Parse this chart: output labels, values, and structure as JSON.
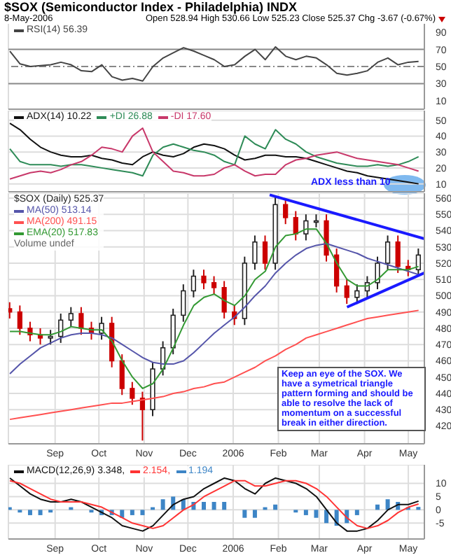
{
  "chart_data": [
    {
      "type": "line",
      "title": "$SOX (Semiconductor Index - Philadelphia) INDX",
      "subtitle": "8-May-2006",
      "annotations": [
        "Open 528.94 High 530.66 Low 525.23 Close 525.37 Chg -3.67 (-0.67%)"
      ],
      "x": [
        "2005-08-01",
        "2005-08-08",
        "2005-08-15",
        "2005-08-22",
        "2005-08-29",
        "2005-09-05",
        "2005-09-12",
        "2005-09-19",
        "2005-09-26",
        "2005-10-03",
        "2005-10-10",
        "2005-10-17",
        "2005-10-24",
        "2005-10-31",
        "2005-11-07",
        "2005-11-14",
        "2005-11-21",
        "2005-11-28",
        "2005-12-05",
        "2005-12-12",
        "2005-12-19",
        "2005-12-26",
        "2006-01-02",
        "2006-01-09",
        "2006-01-16",
        "2006-01-23",
        "2006-01-30",
        "2006-02-06",
        "2006-02-13",
        "2006-02-20",
        "2006-02-27",
        "2006-03-06",
        "2006-03-13",
        "2006-03-20",
        "2006-03-27",
        "2006-04-03",
        "2006-04-10",
        "2006-04-17",
        "2006-04-24",
        "2006-05-01",
        "2006-05-08"
      ],
      "series": [
        {
          "name": "RSI(14) 56.39",
          "color": "#444444",
          "values": [
            68,
            53,
            50,
            51,
            52,
            55,
            52,
            45,
            44,
            52,
            38,
            34,
            36,
            33,
            50,
            60,
            66,
            72,
            68,
            63,
            58,
            50,
            52,
            62,
            70,
            58,
            73,
            62,
            58,
            62,
            60,
            52,
            42,
            40,
            42,
            45,
            55,
            60,
            52,
            55,
            56
          ]
        }
      ],
      "xlim": [
        "2005-07-31",
        "2006-05-12"
      ],
      "xticks": [
        {
          "value": "2005-09-01",
          "label": null
        },
        {
          "value": "2005-10-01",
          "label": null
        },
        {
          "value": "2005-11-01",
          "label": null
        },
        {
          "value": "2005-12-01",
          "label": null
        },
        {
          "value": "2006-01-01",
          "label": null
        },
        {
          "value": "2006-02-01",
          "label": null
        },
        {
          "value": "2006-03-01",
          "label": null
        },
        {
          "value": "2006-04-01",
          "label": null
        },
        {
          "value": "2006-05-01",
          "label": null
        }
      ],
      "ylim": [
        0,
        100
      ],
      "yticks": [
        10,
        30,
        50,
        70,
        90
      ],
      "tick_labels": "y",
      "grid": "x",
      "legend": "top left",
      "ref_lines": [
        {
          "axis": "y",
          "value": 70,
          "color": "#888888"
        },
        {
          "axis": "y",
          "value": 30,
          "color": "#888888"
        },
        {
          "axis": "y",
          "value": 50,
          "color": "#888888",
          "line_style": "dashed"
        }
      ]
    },
    {
      "type": "line",
      "annotations": [
        "ADX less than 10"
      ],
      "x": [
        "2005-08-01",
        "2005-08-08",
        "2005-08-15",
        "2005-08-22",
        "2005-08-29",
        "2005-09-05",
        "2005-09-12",
        "2005-09-19",
        "2005-09-26",
        "2005-10-03",
        "2005-10-10",
        "2005-10-17",
        "2005-10-24",
        "2005-10-31",
        "2005-11-07",
        "2005-11-14",
        "2005-11-21",
        "2005-11-28",
        "2005-12-05",
        "2005-12-12",
        "2005-12-19",
        "2005-12-26",
        "2006-01-02",
        "2006-01-09",
        "2006-01-16",
        "2006-01-23",
        "2006-01-30",
        "2006-02-06",
        "2006-02-13",
        "2006-02-20",
        "2006-02-27",
        "2006-03-06",
        "2006-03-13",
        "2006-03-20",
        "2006-03-27",
        "2006-04-03",
        "2006-04-10",
        "2006-04-17",
        "2006-04-24",
        "2006-05-01",
        "2006-05-08"
      ],
      "series": [
        {
          "name": "ADX(14) 10.22",
          "color": "#111111",
          "values": [
            48,
            44,
            38,
            33,
            30,
            28,
            27,
            27,
            28,
            26,
            25,
            23,
            22,
            27,
            30,
            28,
            27,
            29,
            33,
            35,
            34,
            32,
            28,
            25,
            26,
            28,
            28,
            27,
            27,
            26,
            24,
            22,
            20,
            18,
            17,
            15,
            14,
            13,
            12,
            11,
            10
          ]
        },
        {
          "name": "+DI 26.88",
          "color": "#2e8b57",
          "values": [
            32,
            24,
            22,
            22,
            22,
            21,
            22,
            22,
            21,
            20,
            19,
            18,
            17,
            15,
            28,
            33,
            35,
            33,
            31,
            30,
            28,
            24,
            22,
            40,
            35,
            32,
            44,
            38,
            35,
            30,
            27,
            25,
            23,
            22,
            21,
            21,
            22,
            21,
            22,
            24,
            27
          ]
        },
        {
          "name": "-DI 17.60",
          "color": "#c8386a",
          "values": [
            13,
            15,
            17,
            18,
            17,
            19,
            22,
            24,
            28,
            33,
            32,
            30,
            40,
            45,
            30,
            24,
            18,
            17,
            15,
            15,
            16,
            20,
            22,
            18,
            15,
            16,
            16,
            22,
            25,
            26,
            28,
            29,
            30,
            28,
            26,
            25,
            24,
            23,
            22,
            20,
            18
          ]
        }
      ],
      "xlim": [
        "2005-07-31",
        "2006-05-12"
      ],
      "xticks": [
        {
          "value": "2005-09-01",
          "label": null
        },
        {
          "value": "2005-10-01",
          "label": null
        },
        {
          "value": "2005-11-01",
          "label": null
        },
        {
          "value": "2005-12-01",
          "label": null
        },
        {
          "value": "2006-01-01",
          "label": null
        },
        {
          "value": "2006-02-01",
          "label": null
        },
        {
          "value": "2006-03-01",
          "label": null
        },
        {
          "value": "2006-04-01",
          "label": null
        },
        {
          "value": "2006-05-01",
          "label": null
        }
      ],
      "ylim": [
        5,
        56
      ],
      "yticks": [
        10,
        20,
        30,
        40,
        50
      ],
      "tick_labels": "y",
      "grid": true,
      "legend": "top left"
    },
    {
      "type": "candlestick",
      "legend_title": "$SOX (Daily) 525.37",
      "annotations": [
        "Volume undef",
        "Keep an eye of the SOX.  We have a symetrical triangle pattern forming and should be able to resolve the lack of momentum on a successful break in either direction."
      ],
      "x": [
        "2005-08-01",
        "2005-08-08",
        "2005-08-15",
        "2005-08-22",
        "2005-08-29",
        "2005-09-05",
        "2005-09-12",
        "2005-09-19",
        "2005-09-26",
        "2005-10-03",
        "2005-10-10",
        "2005-10-17",
        "2005-10-24",
        "2005-10-31",
        "2005-11-07",
        "2005-11-14",
        "2005-11-21",
        "2005-11-28",
        "2005-12-05",
        "2005-12-12",
        "2005-12-19",
        "2005-12-26",
        "2006-01-02",
        "2006-01-09",
        "2006-01-16",
        "2006-01-23",
        "2006-01-30",
        "2006-02-06",
        "2006-02-13",
        "2006-02-20",
        "2006-02-27",
        "2006-03-06",
        "2006-03-13",
        "2006-03-20",
        "2006-03-27",
        "2006-04-03",
        "2006-04-10",
        "2006-04-17",
        "2006-04-24",
        "2006-05-01",
        "2006-05-08"
      ],
      "ohlc": [
        [
          492,
          496,
          486,
          490
        ],
        [
          490,
          494,
          476,
          480
        ],
        [
          480,
          484,
          472,
          476
        ],
        [
          476,
          480,
          470,
          474
        ],
        [
          474,
          479,
          470,
          475
        ],
        [
          475,
          489,
          471,
          485
        ],
        [
          485,
          493,
          481,
          489
        ],
        [
          489,
          493,
          476,
          480
        ],
        [
          480,
          484,
          473,
          477
        ],
        [
          477,
          487,
          473,
          483
        ],
        [
          483,
          487,
          456,
          460
        ],
        [
          460,
          464,
          439,
          443
        ],
        [
          443,
          447,
          433,
          437
        ],
        [
          437,
          441,
          411,
          430
        ],
        [
          430,
          459,
          426,
          455
        ],
        [
          455,
          472,
          451,
          468
        ],
        [
          468,
          492,
          464,
          488
        ],
        [
          488,
          507,
          484,
          503
        ],
        [
          503,
          516,
          499,
          512
        ],
        [
          512,
          516,
          504,
          508
        ],
        [
          508,
          512,
          501,
          505
        ],
        [
          505,
          509,
          486,
          490
        ],
        [
          490,
          494,
          482,
          486
        ],
        [
          486,
          524,
          482,
          520
        ],
        [
          520,
          537,
          516,
          533
        ],
        [
          533,
          537,
          516,
          520
        ],
        [
          520,
          561,
          516,
          556
        ],
        [
          556,
          560,
          544,
          548
        ],
        [
          548,
          552,
          534,
          538
        ],
        [
          538,
          550,
          534,
          546
        ],
        [
          546,
          550,
          542,
          546
        ],
        [
          546,
          550,
          521,
          525
        ],
        [
          525,
          529,
          502,
          506
        ],
        [
          506,
          510,
          495,
          499
        ],
        [
          499,
          507,
          495,
          503
        ],
        [
          503,
          512,
          499,
          508
        ],
        [
          508,
          524,
          504,
          520
        ],
        [
          520,
          537,
          516,
          533
        ],
        [
          533,
          537,
          514,
          518
        ],
        [
          518,
          522,
          512,
          516
        ],
        [
          516,
          529,
          512,
          525
        ]
      ],
      "colors": [
        "#cc0000",
        "#cc0000",
        "#cc0000",
        "#cc0000",
        "#222222",
        "#222222",
        "#222222",
        "#cc0000",
        "#cc0000",
        "#222222",
        "#cc0000",
        "#cc0000",
        "#cc0000",
        "#cc0000",
        "#222222",
        "#222222",
        "#222222",
        "#222222",
        "#222222",
        "#cc0000",
        "#cc0000",
        "#cc0000",
        "#cc0000",
        "#222222",
        "#222222",
        "#cc0000",
        "#222222",
        "#cc0000",
        "#cc0000",
        "#222222",
        "#222222",
        "#cc0000",
        "#cc0000",
        "#cc0000",
        "#222222",
        "#222222",
        "#222222",
        "#222222",
        "#cc0000",
        "#cc0000",
        "#222222"
      ],
      "series": [
        {
          "type": "line",
          "name": "MA(50) 513.14",
          "color": "#5555aa",
          "values": [
            452,
            458,
            463,
            468,
            471,
            474,
            476,
            477,
            477,
            476,
            474,
            470,
            466,
            462,
            459,
            458,
            458,
            460,
            465,
            471,
            477,
            482,
            487,
            493,
            500,
            506,
            514,
            520,
            525,
            529,
            531,
            532,
            530,
            528,
            526,
            523,
            521,
            519,
            517,
            515,
            513
          ]
        },
        {
          "type": "line",
          "name": "MA(200) 491.15",
          "color": "#ff5050",
          "values": [
            424,
            425,
            426,
            427,
            428,
            429,
            430,
            431,
            432,
            433,
            434,
            434,
            435,
            436,
            437,
            438,
            440,
            441,
            443,
            444,
            446,
            447,
            450,
            453,
            456,
            460,
            463,
            467,
            470,
            474,
            476,
            478,
            480,
            482,
            484,
            486,
            487,
            488,
            489,
            490,
            491
          ]
        },
        {
          "type": "line",
          "name": "EMA(20) 517.83",
          "color": "#339933",
          "values": [
            478,
            478,
            477,
            476,
            476,
            478,
            481,
            480,
            479,
            479,
            472,
            460,
            450,
            443,
            446,
            455,
            468,
            482,
            494,
            499,
            501,
            497,
            494,
            500,
            510,
            515,
            530,
            537,
            538,
            541,
            541,
            532,
            520,
            510,
            506,
            506,
            510,
            516,
            516,
            516,
            518
          ]
        },
        {
          "type": "line",
          "color": "#1a1aff",
          "x": [
            "2006-01-26",
            "2006-05-12"
          ],
          "values": [
            562,
            535
          ]
        },
        {
          "type": "line",
          "color": "#1a1aff",
          "x": [
            "2006-03-20",
            "2006-05-12"
          ],
          "values": [
            493,
            514
          ]
        }
      ],
      "xlim": [
        "2005-07-31",
        "2006-05-12"
      ],
      "xticks": [
        {
          "value": "2005-09-01",
          "label": "Sep"
        },
        {
          "value": "2005-10-01",
          "label": "Oct"
        },
        {
          "value": "2005-11-01",
          "label": "Nov"
        },
        {
          "value": "2005-12-01",
          "label": "Dec"
        },
        {
          "value": "2006-01-01",
          "label": "2006"
        },
        {
          "value": "2006-02-01",
          "label": "Feb"
        },
        {
          "value": "2006-03-01",
          "label": "Mar"
        },
        {
          "value": "2006-04-01",
          "label": "Apr"
        },
        {
          "value": "2006-05-01",
          "label": "May"
        }
      ],
      "ylim": [
        409,
        563
      ],
      "yticks": [
        420,
        430,
        440,
        450,
        460,
        470,
        480,
        490,
        500,
        510,
        520,
        530,
        540,
        550,
        560
      ],
      "grid": true,
      "legend": "top left"
    },
    {
      "type": "line",
      "x": [
        "2005-08-01",
        "2005-08-08",
        "2005-08-15",
        "2005-08-22",
        "2005-08-29",
        "2005-09-05",
        "2005-09-12",
        "2005-09-19",
        "2005-09-26",
        "2005-10-03",
        "2005-10-10",
        "2005-10-17",
        "2005-10-24",
        "2005-10-31",
        "2005-11-07",
        "2005-11-14",
        "2005-11-21",
        "2005-11-28",
        "2005-12-05",
        "2005-12-12",
        "2005-12-19",
        "2005-12-26",
        "2006-01-02",
        "2006-01-09",
        "2006-01-16",
        "2006-01-23",
        "2006-01-30",
        "2006-02-06",
        "2006-02-13",
        "2006-02-20",
        "2006-02-27",
        "2006-03-06",
        "2006-03-13",
        "2006-03-20",
        "2006-03-27",
        "2006-04-03",
        "2006-04-10",
        "2006-04-17",
        "2006-04-24",
        "2006-05-01",
        "2006-05-08"
      ],
      "series": [
        {
          "name": "MACD(12,26,9) 3.348,",
          "color": "#111111",
          "values": [
            12,
            9,
            6,
            4,
            3,
            3,
            4,
            3,
            1,
            -1,
            -3,
            -6,
            -7,
            -8,
            -6,
            -2,
            2,
            4,
            5,
            8,
            10,
            12,
            11,
            8,
            6,
            10,
            12,
            11,
            10,
            8,
            5,
            0,
            -5,
            -8,
            -8,
            -7,
            -4,
            0,
            2,
            2,
            3.3
          ]
        },
        {
          "name": "2.154,",
          "color": "#ff3333",
          "values": [
            11,
            10,
            8,
            6,
            4,
            3,
            3,
            3,
            2,
            1,
            -1,
            -3,
            -5,
            -6,
            -7,
            -6,
            -3,
            0,
            2,
            5,
            7,
            9,
            11,
            11,
            9,
            9,
            10,
            11,
            11,
            10,
            8,
            5,
            1,
            -3,
            -6,
            -7,
            -6,
            -4,
            -1,
            1,
            2.2
          ]
        },
        {
          "type": "bar",
          "name": "1.194",
          "color": "#3d85c6",
          "values": [
            1,
            -1,
            -2,
            -2,
            -1,
            0,
            1,
            0,
            -1,
            -2,
            -2,
            -3,
            -2,
            -2,
            1,
            4,
            5,
            4,
            3,
            3,
            3,
            3,
            0,
            -3,
            -3,
            1,
            2,
            0,
            -1,
            -2,
            -3,
            -5,
            -6,
            -5,
            -2,
            0,
            2,
            4,
            3,
            1,
            1.1
          ]
        }
      ],
      "xlim": [
        "2005-07-31",
        "2006-05-12"
      ],
      "xticks": [
        {
          "value": "2005-09-01",
          "label": "Sep"
        },
        {
          "value": "2005-10-01",
          "label": "Oct"
        },
        {
          "value": "2005-11-01",
          "label": "Nov"
        },
        {
          "value": "2005-12-01",
          "label": "Dec"
        },
        {
          "value": "2006-01-01",
          "label": "2006"
        },
        {
          "value": "2006-02-01",
          "label": "Feb"
        },
        {
          "value": "2006-03-01",
          "label": "Mar"
        },
        {
          "value": "2006-04-01",
          "label": "Apr"
        },
        {
          "value": "2006-05-01",
          "label": "May"
        }
      ],
      "ylim": [
        -11,
        17
      ],
      "yticks": [
        -5,
        0,
        5,
        10
      ],
      "grid": true,
      "legend": "top left"
    }
  ]
}
